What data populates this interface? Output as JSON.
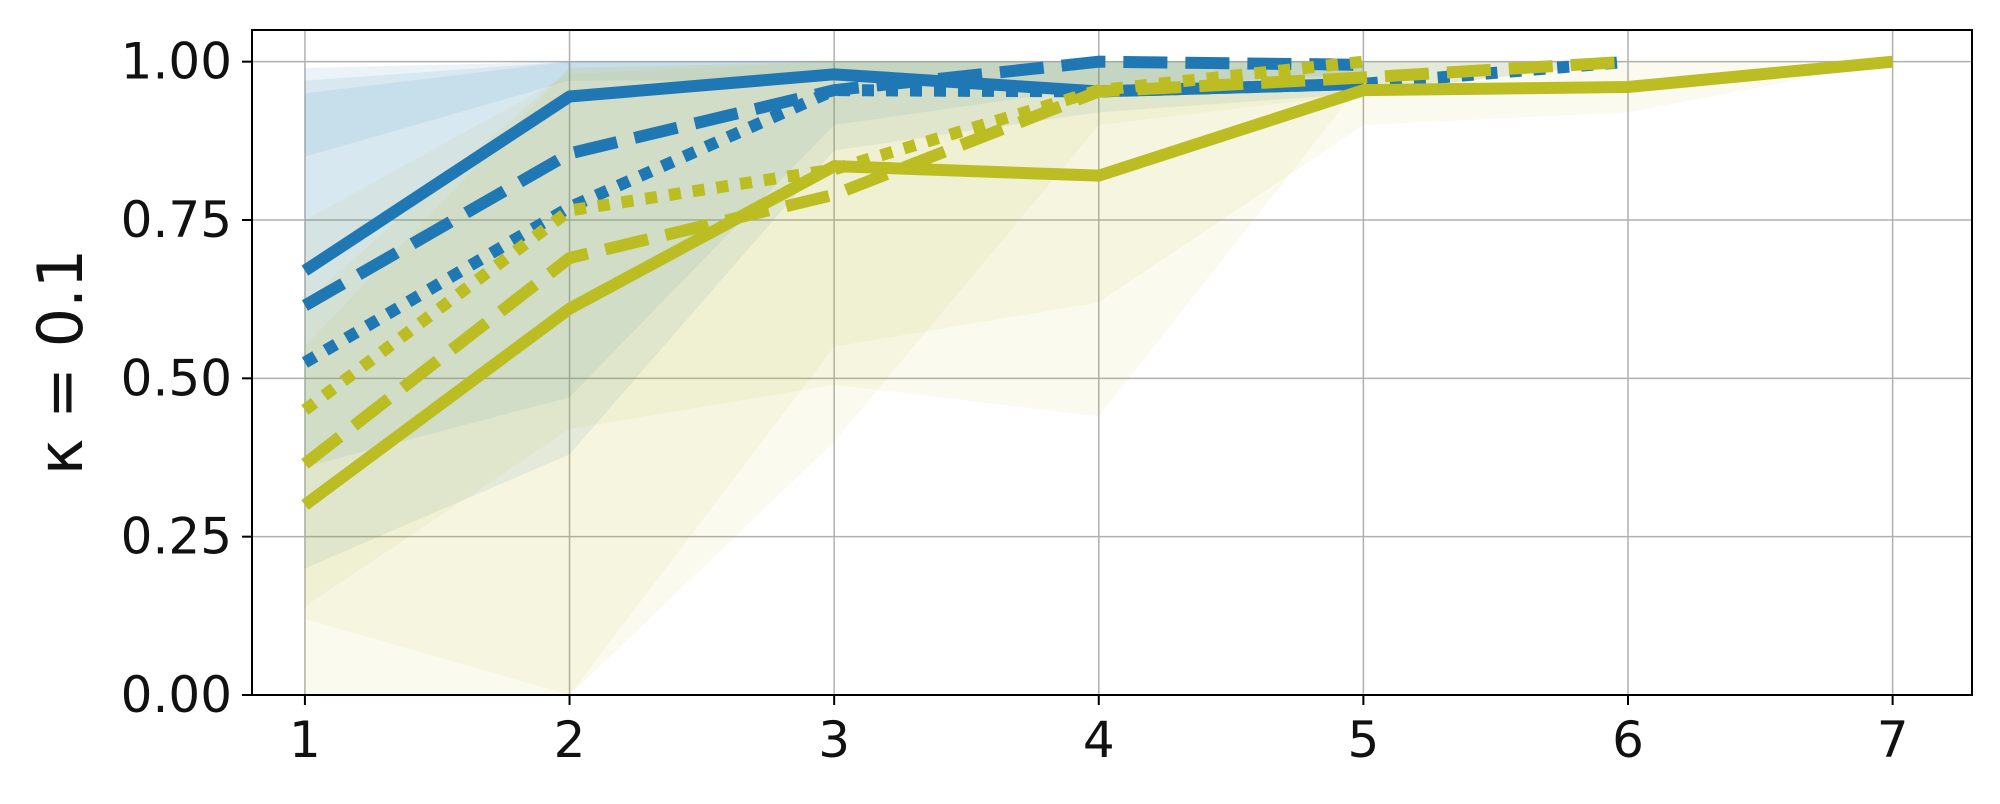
{
  "chart_data": {
    "type": "line",
    "title": "",
    "xlabel": "",
    "ylabel": "κ = 0.1",
    "xlim": [
      0.8,
      7.3
    ],
    "ylim": [
      0.0,
      1.05
    ],
    "x_ticks": [
      1,
      2,
      3,
      4,
      5,
      6,
      7
    ],
    "x_tick_labels": [
      "1",
      "2",
      "3",
      "4",
      "5",
      "6",
      "7"
    ],
    "y_ticks": [
      0.0,
      0.25,
      0.5,
      0.75,
      1.0
    ],
    "y_tick_labels": [
      "0.00",
      "0.25",
      "0.50",
      "0.75",
      "1.00"
    ],
    "grid": true,
    "legend": "none",
    "series": [
      {
        "color": "#1f77b4",
        "style": "solid",
        "x": [
          1,
          2,
          3,
          4,
          5
        ],
        "y": [
          0.67,
          0.945,
          0.98,
          0.953,
          0.965
        ],
        "band_lower": [
          0.85,
          0.97,
          0.97,
          0.95,
          0.96
        ],
        "band_upper": [
          0.99,
          1.0,
          1.0,
          1.0,
          1.0
        ]
      },
      {
        "color": "#1f77b4",
        "style": "dashed",
        "x": [
          1,
          2,
          3,
          4,
          5
        ],
        "y": [
          0.615,
          0.855,
          0.955,
          1.0,
          0.995
        ],
        "band_lower": [
          0.36,
          0.47,
          0.9,
          0.96,
          0.98
        ],
        "band_upper": [
          0.95,
          1.0,
          1.0,
          1.0,
          1.0
        ]
      },
      {
        "color": "#1f77b4",
        "style": "dotted",
        "x": [
          1,
          2,
          3,
          4,
          5,
          6
        ],
        "y": [
          0.525,
          0.77,
          0.955,
          0.953,
          0.965,
          1.0
        ],
        "band_lower": [
          0.2,
          0.38,
          0.86,
          0.92,
          0.95,
          1.0
        ],
        "band_upper": [
          0.97,
          1.0,
          1.0,
          1.0,
          1.0,
          1.0
        ]
      },
      {
        "color": "#bcbd22",
        "style": "dotted",
        "x": [
          1,
          2,
          3,
          4,
          5
        ],
        "y": [
          0.45,
          0.765,
          0.83,
          0.955,
          1.0
        ],
        "band_lower": [
          0.14,
          0.42,
          0.49,
          0.44,
          0.97
        ],
        "band_upper": [
          0.75,
          0.98,
          1.0,
          1.0,
          1.0
        ]
      },
      {
        "color": "#bcbd22",
        "style": "dashed",
        "x": [
          1,
          2,
          3,
          4,
          5,
          6
        ],
        "y": [
          0.365,
          0.69,
          0.79,
          0.953,
          0.975,
          1.0
        ],
        "band_lower": [
          0.12,
          0.0,
          0.4,
          0.9,
          0.95,
          1.0
        ],
        "band_upper": [
          0.62,
          0.99,
          1.0,
          1.0,
          1.0,
          1.0
        ]
      },
      {
        "color": "#bcbd22",
        "style": "solid",
        "x": [
          1,
          2,
          3,
          4,
          5,
          6,
          7
        ],
        "y": [
          0.3,
          0.61,
          0.835,
          0.82,
          0.955,
          0.96,
          1.0
        ],
        "band_lower": [
          0.0,
          0.0,
          0.55,
          0.62,
          0.9,
          0.92,
          1.0
        ],
        "band_upper": [
          0.55,
          0.99,
          1.0,
          1.0,
          1.0,
          1.0,
          1.0
        ]
      }
    ]
  }
}
